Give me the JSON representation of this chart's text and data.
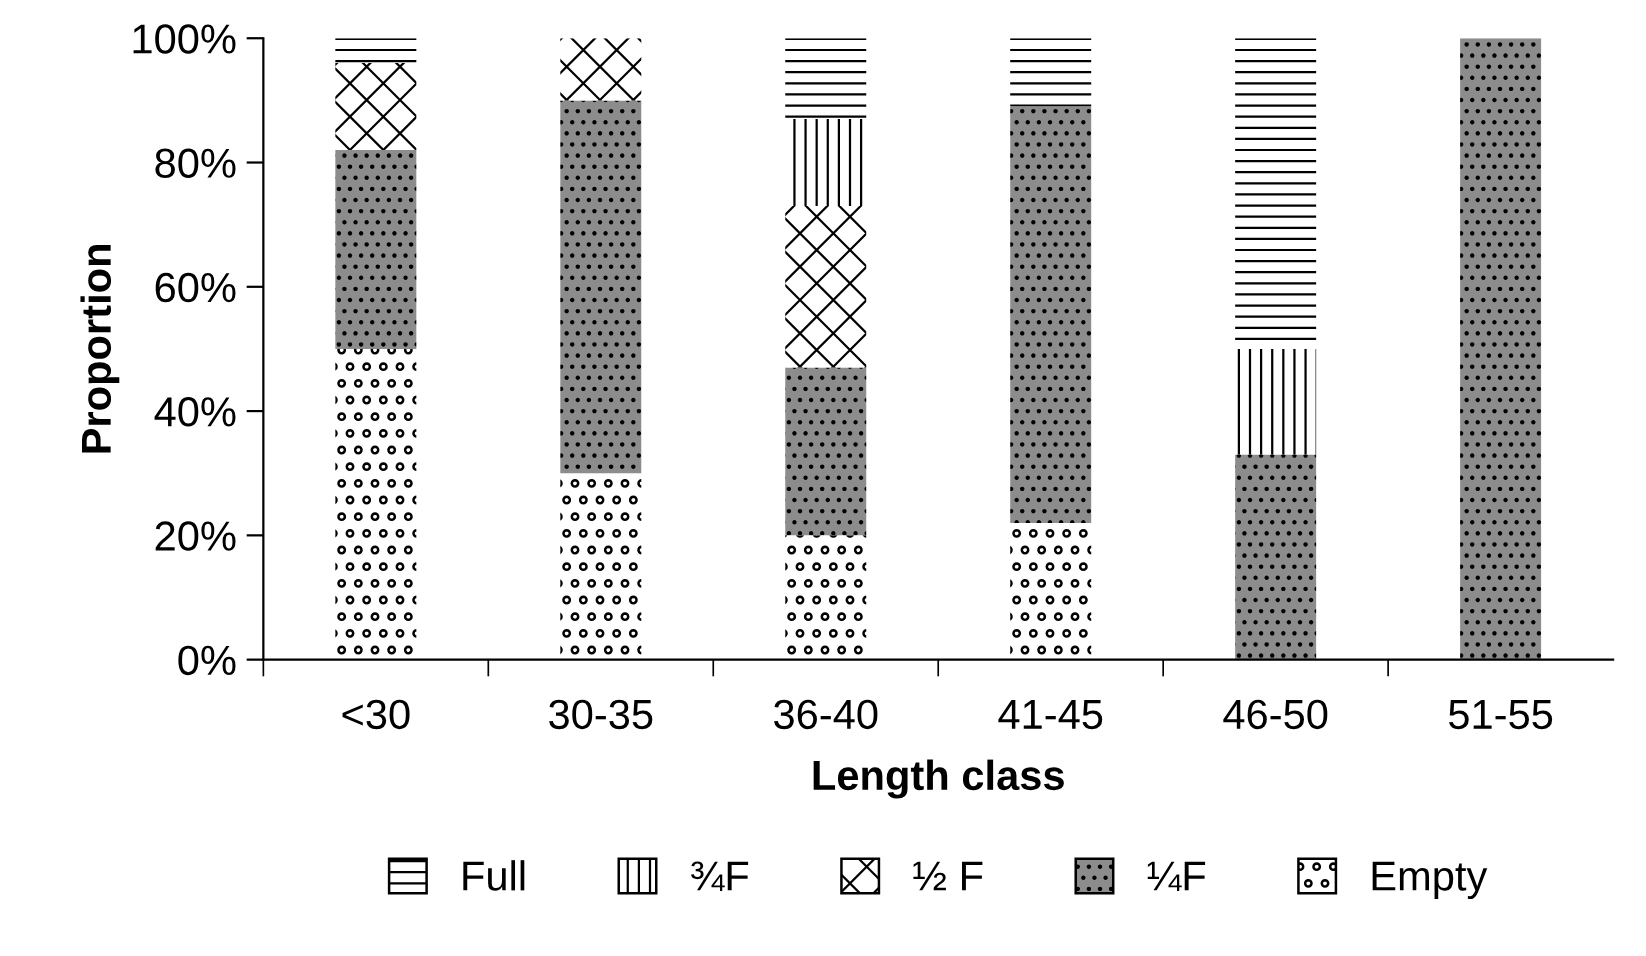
{
  "chart_data": {
    "type": "bar",
    "stacked": true,
    "xlabel": "Length class",
    "ylabel": "Proportion",
    "categories": [
      "<30",
      "30-35",
      "36-40",
      "41-45",
      "46-50",
      "51-55"
    ],
    "series": [
      {
        "name": "Empty",
        "color": "#ffffff",
        "values": [
          50,
          30,
          20,
          22,
          0,
          0
        ]
      },
      {
        "name": "¼F",
        "color": "#8c8c8c",
        "values": [
          32,
          60,
          27,
          67,
          33,
          100
        ]
      },
      {
        "name": "½ F",
        "color": "#ffffff",
        "values": [
          14,
          10,
          26,
          0,
          0,
          0
        ]
      },
      {
        "name": "¾F",
        "color": "#ffffff",
        "values": [
          0,
          0,
          14,
          0,
          17,
          0
        ]
      },
      {
        "name": "Full",
        "color": "#ffffff",
        "values": [
          4,
          0,
          13,
          11,
          50,
          0
        ]
      }
    ],
    "ylim": [
      0,
      100
    ],
    "yticks": [
      {
        "value": 0,
        "label": "0%"
      },
      {
        "value": 20,
        "label": "20%"
      },
      {
        "value": 40,
        "label": "40%"
      },
      {
        "value": 60,
        "label": "60%"
      },
      {
        "value": 80,
        "label": "80%"
      },
      {
        "value": 100,
        "label": "100%"
      }
    ],
    "grid": false,
    "legend": "bottom"
  }
}
